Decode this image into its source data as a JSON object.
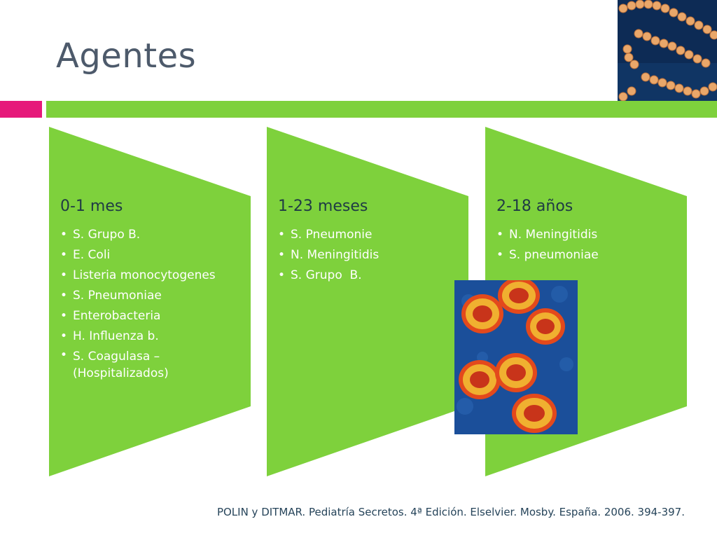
{
  "slide": {
    "title": "Agentes",
    "citation": "POLIN y DITMAR. Pediatría Secretos. 4ª Edición. Elselvier. Mosby. España. 2006. 394-397."
  },
  "colors": {
    "accent_pink": "#e6197a",
    "accent_green": "#7ed13c",
    "panel_green": "#7ed13c",
    "title_text": "#4d5a6b",
    "heading_text": "#1f3a45",
    "citation_text": "#26445a"
  },
  "columns": [
    {
      "heading": "0-1 mes",
      "items": [
        "S. Grupo B.",
        "E. Coli",
        "Listeria monocytogenes",
        "S. Pneumoniae",
        "Enterobacteria",
        "H. Influenza b.",
        "S. Coagulasa – (Hospitalizados)"
      ]
    },
    {
      "heading": "1-23 meses",
      "items": [
        "S. Pneumonie",
        "N. Meningitidis",
        "S. Grupo  B."
      ]
    },
    {
      "heading": "2-18 años",
      "items": [
        "N. Meningitidis",
        "S. pneumoniae"
      ]
    }
  ],
  "images": {
    "top_photo": "streptococcus-chain-micrograph",
    "mid_photo": "diplococci-micrograph"
  }
}
